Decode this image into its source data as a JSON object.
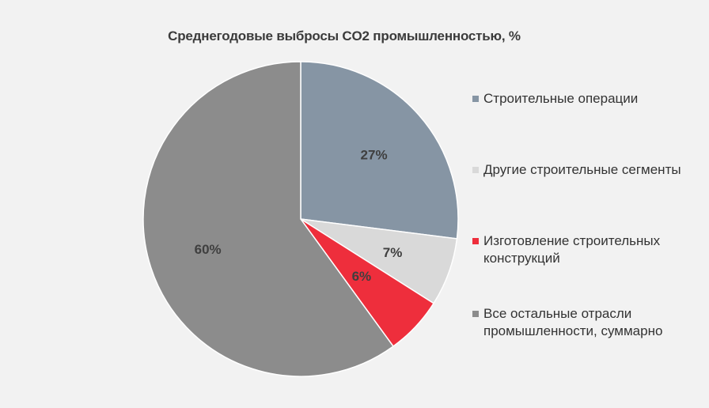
{
  "chart_data": {
    "type": "pie",
    "title": "Среднегодовые выбросы CO2 промышленностью, %",
    "slices": [
      {
        "name": "Строительные операции",
        "value": 27,
        "label": "27%",
        "color": "#8695a4"
      },
      {
        "name": "Другие строительные сегменты",
        "value": 7,
        "label": "7%",
        "color": "#d9d9d9"
      },
      {
        "name": "Изготовление строительных конструкций",
        "value": 6,
        "label": "6%",
        "color": "#ee2e3c"
      },
      {
        "name": "Все остальные отрасли промышленности, суммарно",
        "value": 60,
        "label": "60%",
        "color": "#8c8c8c"
      }
    ],
    "legend_position": "right"
  }
}
